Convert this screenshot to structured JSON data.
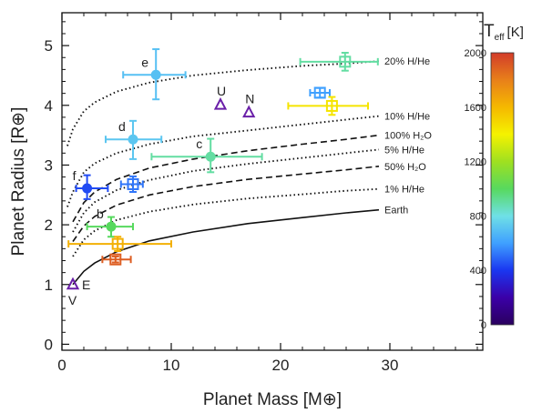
{
  "chart_data": {
    "type": "scatter",
    "xlabel": "Planet Mass [M⊕]",
    "ylabel": "Planet Radius [R⊕]",
    "xlim": [
      0,
      38.5
    ],
    "ylim": [
      -0.1,
      5.55
    ],
    "x_ticks": [
      0,
      10,
      20,
      30
    ],
    "y_ticks": [
      0,
      1,
      2,
      3,
      4,
      5
    ],
    "grid": false,
    "colorbar": {
      "title": "T",
      "title_subscript": "eff",
      "title_unit": "[K]",
      "range": [
        0,
        2000
      ],
      "ticks": [
        0,
        400,
        800,
        1200,
        1600,
        2000
      ],
      "colormap": [
        "#2a005e",
        "#3b00a8",
        "#1a36f0",
        "#3fa0ff",
        "#6fe0e6",
        "#57d95e",
        "#9fe020",
        "#f5f200",
        "#f5b800",
        "#e8801a",
        "#d23c2a"
      ]
    },
    "curves": [
      {
        "label": "20% H/He",
        "style": "dotted",
        "x": [
          0.5,
          1,
          2,
          3,
          5,
          8,
          12,
          17,
          22,
          26,
          29
        ],
        "y": [
          3.32,
          3.6,
          3.9,
          4.05,
          4.23,
          4.38,
          4.5,
          4.59,
          4.66,
          4.7,
          4.74
        ]
      },
      {
        "label": "10% H/He",
        "style": "dotted",
        "x": [
          0.5,
          1,
          2,
          3,
          5,
          8,
          12,
          17,
          22,
          26,
          29
        ],
        "y": [
          2.3,
          2.55,
          2.88,
          3.03,
          3.2,
          3.35,
          3.48,
          3.58,
          3.68,
          3.76,
          3.82
        ]
      },
      {
        "label": "100% H₂O",
        "style": "dashed",
        "x": [
          1,
          2,
          3,
          5,
          8,
          12,
          17,
          22,
          26,
          29
        ],
        "y": [
          2.05,
          2.37,
          2.55,
          2.76,
          2.95,
          3.1,
          3.24,
          3.35,
          3.43,
          3.5
        ]
      },
      {
        "label": "5% H/He",
        "style": "dotted",
        "x": [
          1,
          2,
          3,
          5,
          8,
          12,
          17,
          22,
          26,
          29
        ],
        "y": [
          1.88,
          2.2,
          2.38,
          2.58,
          2.75,
          2.9,
          3.02,
          3.12,
          3.2,
          3.26
        ]
      },
      {
        "label": "50% H₂O",
        "style": "dashed",
        "x": [
          1,
          2,
          3,
          5,
          8,
          12,
          17,
          22,
          26,
          29
        ],
        "y": [
          1.72,
          1.98,
          2.14,
          2.33,
          2.5,
          2.64,
          2.76,
          2.85,
          2.92,
          2.98
        ]
      },
      {
        "label": "1% H/He",
        "style": "dotted",
        "x": [
          1,
          2,
          3,
          5,
          8,
          12,
          17,
          22,
          26,
          29
        ],
        "y": [
          1.47,
          1.75,
          1.9,
          2.08,
          2.22,
          2.34,
          2.44,
          2.51,
          2.57,
          2.6
        ]
      },
      {
        "label": "Earth",
        "style": "solid",
        "x": [
          1,
          2,
          3,
          5,
          8,
          12,
          17,
          22,
          26,
          29
        ],
        "y": [
          1.0,
          1.22,
          1.36,
          1.55,
          1.73,
          1.88,
          2.02,
          2.12,
          2.2,
          2.25
        ]
      }
    ],
    "points": [
      {
        "label": "e",
        "marker": "circle",
        "x": 8.6,
        "y": 4.51,
        "xerr": [
          3.0,
          2.7
        ],
        "yerr": [
          0.41,
          0.43
        ],
        "teff": 700
      },
      {
        "label": "d",
        "marker": "circle",
        "x": 6.5,
        "y": 3.43,
        "xerr": [
          2.5,
          2.6
        ],
        "yerr": [
          0.33,
          0.31
        ],
        "teff": 720
      },
      {
        "label": "c",
        "marker": "circle",
        "x": 13.6,
        "y": 3.14,
        "xerr": [
          5.4,
          4.7
        ],
        "yerr": [
          0.26,
          0.3
        ],
        "teff": 900
      },
      {
        "label": "f",
        "marker": "circle",
        "x": 2.3,
        "y": 2.61,
        "xerr": [
          1.0,
          1.9
        ],
        "yerr": [
          0.18,
          0.22
        ],
        "teff": 440
      },
      {
        "label": "b",
        "marker": "circle",
        "x": 4.5,
        "y": 1.97,
        "xerr": [
          2.2,
          2.0
        ],
        "yerr": [
          0.17,
          0.16
        ],
        "teff": 1000
      },
      {
        "label": "",
        "marker": "square",
        "x": 25.9,
        "y": 4.73,
        "xerr": [
          4.1,
          3.0
        ],
        "yerr": [
          0.15,
          0.15
        ],
        "teff": 900
      },
      {
        "label": "",
        "marker": "square",
        "x": 23.6,
        "y": 4.21,
        "xerr": [
          0.9,
          0.9
        ],
        "yerr": [
          0.08,
          0.08
        ],
        "teff": 600
      },
      {
        "label": "",
        "marker": "square",
        "x": 24.7,
        "y": 3.99,
        "xerr": [
          4.0,
          3.3
        ],
        "yerr": [
          0.15,
          0.15
        ],
        "teff": 1450
      },
      {
        "label": "",
        "marker": "square",
        "x": 6.5,
        "y": 2.68,
        "xerr": [
          1.1,
          0.9
        ],
        "yerr": [
          0.13,
          0.13
        ],
        "teff": 520
      },
      {
        "label": "",
        "marker": "square",
        "x": 5.1,
        "y": 1.68,
        "xerr": [
          4.5,
          4.9
        ],
        "yerr": [
          0.12,
          0.12
        ],
        "teff": 1630
      },
      {
        "label": "",
        "marker": "square",
        "x": 4.9,
        "y": 1.42,
        "xerr": [
          1.2,
          1.4
        ],
        "yerr": [
          0.05,
          0.05
        ],
        "teff": 1900
      }
    ],
    "solar_system": [
      {
        "label": "E",
        "x": 1.0,
        "y": 1.0
      },
      {
        "label": "V",
        "x": 0.82,
        "y": 0.95
      },
      {
        "label": "U",
        "x": 14.5,
        "y": 4.01
      },
      {
        "label": "N",
        "x": 17.1,
        "y": 3.88
      }
    ],
    "solar_system_color": "#6a1fa8"
  }
}
